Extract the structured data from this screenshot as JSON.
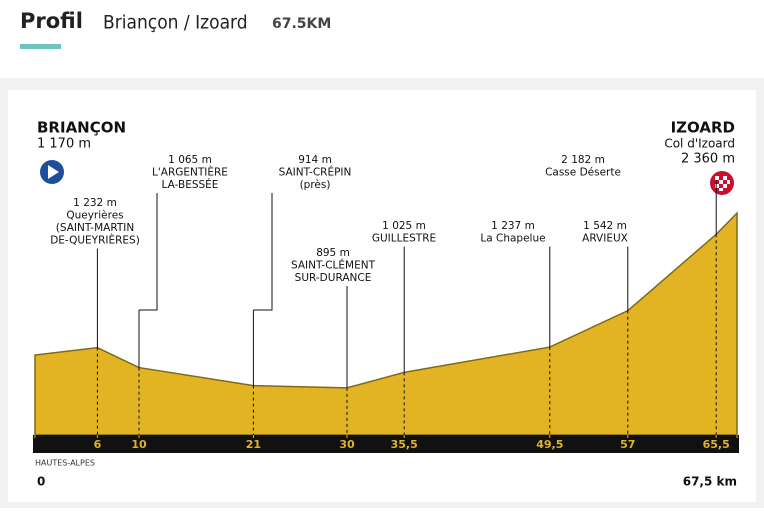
{
  "header": {
    "tab": "Profil",
    "stage": "Briançon / Izoard",
    "distance": "67.5KM"
  },
  "chart_data": {
    "type": "area",
    "region": "HAUTES-ALPES",
    "x": [
      0,
      6,
      10,
      21,
      30,
      35.5,
      49.5,
      57,
      65.5,
      67.5
    ],
    "values": [
      1170,
      1232,
      1065,
      914,
      895,
      1025,
      1237,
      1542,
      2182,
      2360
    ],
    "value_labels": [
      "1 170 m",
      "1 232 m",
      "1 065 m",
      "914 m",
      "895 m",
      "1 025 m",
      "1 237 m",
      "1 542 m",
      "2 182 m",
      "2 360 m"
    ],
    "point_names": [
      [
        "BRIANÇON"
      ],
      [
        "Queyrières",
        "(SAINT-MARTIN",
        "DE-QUEYRIÈRES)"
      ],
      [
        "L'ARGENTIÈRE",
        "LA-BESSÉE"
      ],
      [
        "SAINT-CRÉPIN",
        "(près)"
      ],
      [
        "SAINT-CLÉMENT",
        "SUR-DURANCE"
      ],
      [
        "GUILLESTRE"
      ],
      [
        "La Chapelue"
      ],
      [
        "ARVIEUX"
      ],
      [
        "Casse Déserte"
      ],
      [
        "IZOARD",
        "Col d'Izoard"
      ]
    ],
    "color": "#e2b424",
    "xlim": [
      0,
      67.5
    ],
    "ylim": [
      500,
      3140
    ],
    "xticks": [
      0,
      6,
      10,
      21,
      30,
      {
        "value": 35.5,
        "label": "35,5"
      },
      {
        "value": 49.5,
        "label": "49,5"
      },
      57,
      {
        "value": 65.5,
        "label": "65,5"
      },
      {
        "value": 67.5,
        "label": "67,5 km"
      }
    ]
  }
}
